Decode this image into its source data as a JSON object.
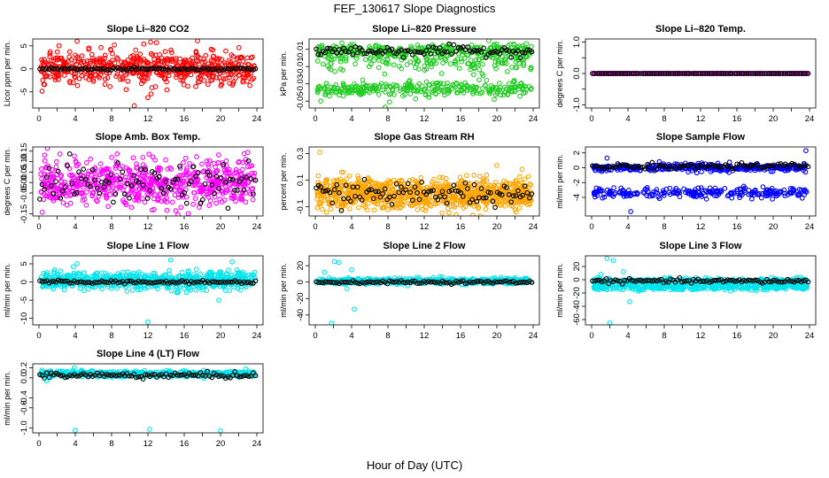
{
  "figure": {
    "title": "FEF_130617  Slope Diagnostics",
    "xlabel": "Hour of Day (UTC)"
  },
  "chart_data": [
    {
      "type": "scatter",
      "title": "Slope Li–820 CO2",
      "ylabel": "Licor ppm per min.",
      "xlim": [
        0,
        24
      ],
      "ylim": [
        -8.5,
        6.5
      ],
      "x_ticks": [
        "0",
        "4",
        "8",
        "12",
        "16",
        "20",
        "24"
      ],
      "x_minor_ticks": [
        "2",
        "6",
        "10",
        "14",
        "18",
        "22"
      ],
      "y_ticks": [
        "-5",
        "0",
        "5"
      ],
      "y_tick_values": [
        -5,
        0,
        5
      ],
      "series": [
        {
          "name": "all slopes",
          "color": "#ff0000",
          "marker": "circle",
          "center": 0,
          "spread": 1.6,
          "outlier_spread": 3.5,
          "count": 600
        },
        {
          "name": "hourly median",
          "color": "#000000",
          "marker": "circle",
          "center": 0,
          "spread": 0.15,
          "count": 95
        }
      ],
      "noted_points": [
        [
          4.2,
          6
        ],
        [
          12.3,
          5.8
        ],
        [
          10.5,
          -8
        ],
        [
          8.3,
          5.2
        ],
        [
          9.6,
          -4.5
        ]
      ]
    },
    {
      "type": "scatter",
      "title": "Slope Li–820 Pressure",
      "ylabel": "kPa per min.",
      "xlim": [
        0,
        24
      ],
      "ylim": [
        -0.058,
        0.022
      ],
      "x_ticks": [
        "0",
        "4",
        "8",
        "12",
        "16",
        "20",
        "24"
      ],
      "x_minor_ticks": [
        "2",
        "6",
        "10",
        "14",
        "18",
        "22"
      ],
      "y_ticks": [
        "-0.05",
        "-0.03",
        "-0.01",
        "0.01"
      ],
      "y_tick_values": [
        -0.05,
        -0.03,
        -0.01,
        0.01
      ],
      "series": [
        {
          "name": "upper band",
          "color": "#22cc22",
          "marker": "circle",
          "center": 0.008,
          "spread": 0.004,
          "count": 300
        },
        {
          "name": "lower band",
          "color": "#22cc22",
          "marker": "circle",
          "center": -0.036,
          "spread": 0.004,
          "count": 300
        },
        {
          "name": "middle band",
          "color": "#22cc22",
          "marker": "circle",
          "center": -0.005,
          "spread": 0.006,
          "count": 150
        },
        {
          "name": "hourly median",
          "color": "#000000",
          "marker": "circle",
          "center": 0.008,
          "spread": 0.003,
          "count": 95
        }
      ],
      "noted_points": [
        [
          7.7,
          -0.057
        ],
        [
          19.1,
          0.02
        ],
        [
          0.6,
          -0.05
        ]
      ]
    },
    {
      "type": "scatter",
      "title": "Slope Li–820 Temp.",
      "ylabel": "degrees C per min.",
      "xlim": [
        0,
        24
      ],
      "ylim": [
        -1.1,
        1.1
      ],
      "x_ticks": [
        "0",
        "4",
        "8",
        "12",
        "16",
        "20",
        "24"
      ],
      "x_minor_ticks": [
        "2",
        "6",
        "10",
        "14",
        "18",
        "22"
      ],
      "y_ticks": [
        "-1.0",
        "0.0",
        "1.0"
      ],
      "y_tick_values": [
        -1.0,
        0.0,
        1.0
      ],
      "y_minor_ticks": [
        "-0.5",
        "0.5"
      ],
      "series": [
        {
          "name": "all slopes",
          "color": "#ff00ff",
          "marker": "circle",
          "center": 0,
          "spread": 0.0,
          "count": 260
        },
        {
          "name": "hourly median",
          "color": "#000000",
          "marker": "circle",
          "center": 0,
          "spread": 0.0,
          "count": 95
        }
      ],
      "noted_points": []
    },
    {
      "type": "scatter",
      "title": "Slope Amb. Box Temp.",
      "ylabel": "degrees C per min.",
      "xlim": [
        0,
        24
      ],
      "ylim": [
        -0.16,
        0.17
      ],
      "x_ticks": [
        "0",
        "4",
        "8",
        "12",
        "16",
        "20",
        "24"
      ],
      "x_minor_ticks": [
        "2",
        "6",
        "10",
        "14",
        "18",
        "22"
      ],
      "y_ticks": [
        "-0.15",
        "-0.05",
        "0.00",
        "0.05",
        "0.10",
        "0.15"
      ],
      "y_tick_values": [
        -0.15,
        -0.05,
        0.0,
        0.05,
        0.1,
        0.15
      ],
      "series": [
        {
          "name": "all slopes",
          "color": "#ff00ff",
          "marker": "circle",
          "center": 0,
          "spread": 0.055,
          "count": 650
        },
        {
          "name": "hourly median",
          "color": "#000000",
          "marker": "circle",
          "center": 0,
          "spread": 0.05,
          "count": 95
        }
      ],
      "noted_points": []
    },
    {
      "type": "scatter",
      "title": "Slope Gas Stream RH",
      "ylabel": "percent per min.",
      "xlim": [
        0,
        24
      ],
      "ylim": [
        -0.17,
        0.35
      ],
      "x_ticks": [
        "0",
        "4",
        "8",
        "12",
        "16",
        "20",
        "24"
      ],
      "x_minor_ticks": [
        "2",
        "6",
        "10",
        "14",
        "18",
        "22"
      ],
      "y_ticks": [
        "-0.1",
        "0.1",
        "0.3"
      ],
      "y_tick_values": [
        -0.1,
        0.1,
        0.3
      ],
      "series": [
        {
          "name": "all slopes",
          "color": "#ffa500",
          "marker": "circle",
          "center": 0,
          "spread": 0.055,
          "count": 900
        },
        {
          "name": "hourly median",
          "color": "#000000",
          "marker": "circle",
          "center": 0,
          "spread": 0.045,
          "count": 95
        }
      ],
      "noted_points": [
        [
          0.5,
          0.31
        ],
        [
          15.5,
          -0.16
        ]
      ]
    },
    {
      "type": "scatter",
      "title": "Slope Sample Flow",
      "ylabel": "ml/min per min.",
      "xlim": [
        0,
        24
      ],
      "ylim": [
        -6.5,
        2.8
      ],
      "x_ticks": [
        "0",
        "4",
        "8",
        "12",
        "16",
        "20",
        "24"
      ],
      "x_minor_ticks": [
        "2",
        "6",
        "10",
        "14",
        "18",
        "22"
      ],
      "y_ticks": [
        "-4",
        "-2",
        "0",
        "2"
      ],
      "y_tick_values": [
        -4,
        -2,
        0,
        2
      ],
      "series": [
        {
          "name": "upper band",
          "color": "#0000ff",
          "marker": "circle",
          "center": 0,
          "spread": 0.25,
          "count": 350
        },
        {
          "name": "lower band",
          "color": "#0000ff",
          "marker": "circle",
          "center": -3.4,
          "spread": 0.35,
          "count": 250
        },
        {
          "name": "hourly median",
          "color": "#000000",
          "marker": "circle",
          "center": 0.2,
          "spread": 0.2,
          "count": 95
        }
      ],
      "noted_points": [
        [
          23.6,
          2.3
        ],
        [
          4.3,
          -5.9
        ],
        [
          1.7,
          1.3
        ]
      ]
    },
    {
      "type": "scatter",
      "title": "Slope Line 1 Flow",
      "ylabel": "ml/min per min.",
      "xlim": [
        0,
        24
      ],
      "ylim": [
        -11.8,
        7.2
      ],
      "x_ticks": [
        "0",
        "4",
        "8",
        "12",
        "16",
        "20",
        "24"
      ],
      "x_minor_ticks": [
        "2",
        "6",
        "10",
        "14",
        "18",
        "22"
      ],
      "y_ticks": [
        "-10",
        "-5",
        "0",
        "5"
      ],
      "y_tick_values": [
        -10,
        -5,
        0,
        5
      ],
      "series": [
        {
          "name": "all slopes",
          "color": "#00e5ee",
          "marker": "circle",
          "center": 0.4,
          "spread": 1.2,
          "count": 650
        },
        {
          "name": "hourly median",
          "color": "#000000",
          "marker": "circle",
          "center": 0,
          "spread": 0.2,
          "count": 95
        }
      ],
      "noted_points": [
        [
          12,
          -11
        ],
        [
          14.5,
          6
        ],
        [
          19.8,
          -5
        ],
        [
          4.2,
          5
        ],
        [
          3.8,
          4.2
        ]
      ]
    },
    {
      "type": "scatter",
      "title": "Slope Line 2 Flow",
      "ylabel": "ml/min per min.",
      "xlim": [
        0,
        24
      ],
      "ylim": [
        -52,
        32
      ],
      "x_ticks": [
        "0",
        "4",
        "8",
        "12",
        "16",
        "20",
        "24"
      ],
      "x_minor_ticks": [
        "2",
        "6",
        "10",
        "14",
        "18",
        "22"
      ],
      "y_ticks": [
        "-40",
        "-20",
        "0",
        "20"
      ],
      "y_tick_values": [
        -40,
        -20,
        0,
        20
      ],
      "series": [
        {
          "name": "all slopes",
          "color": "#00e5ee",
          "marker": "circle",
          "center": 1,
          "spread": 1.8,
          "count": 550
        },
        {
          "name": "hourly median",
          "color": "#000000",
          "marker": "circle",
          "center": 0,
          "spread": 0.8,
          "count": 95
        }
      ],
      "noted_points": [
        [
          1.8,
          -50
        ],
        [
          2.1,
          25
        ],
        [
          2.6,
          24
        ],
        [
          4.3,
          -33
        ],
        [
          3.5,
          -8
        ],
        [
          4,
          15
        ],
        [
          1,
          12
        ]
      ]
    },
    {
      "type": "scatter",
      "title": "Slope Line 3 Flow",
      "ylabel": "ml/min per min.",
      "xlim": [
        0,
        24
      ],
      "ylim": [
        -68,
        36
      ],
      "x_ticks": [
        "0",
        "4",
        "8",
        "12",
        "16",
        "20",
        "24"
      ],
      "x_minor_ticks": [
        "2",
        "6",
        "10",
        "14",
        "18",
        "22"
      ],
      "y_ticks": [
        "-60",
        "-40",
        "-20",
        "0",
        "20"
      ],
      "y_tick_values": [
        -60,
        -40,
        -20,
        0,
        20
      ],
      "series": [
        {
          "name": "upper band",
          "color": "#00e5ee",
          "marker": "circle",
          "center": -2,
          "spread": 2.2,
          "count": 350
        },
        {
          "name": "lower band",
          "color": "#00e5ee",
          "marker": "circle",
          "center": -11,
          "spread": 2.2,
          "count": 350
        },
        {
          "name": "hourly median",
          "color": "#000000",
          "marker": "circle",
          "center": -2,
          "spread": 1.5,
          "count": 95
        }
      ],
      "noted_points": [
        [
          2,
          -65
        ],
        [
          1.7,
          32
        ],
        [
          2.4,
          29
        ],
        [
          4.2,
          -33
        ],
        [
          3.5,
          12
        ],
        [
          1,
          8
        ]
      ]
    },
    {
      "type": "scatter",
      "title": "Slope Line 4 (LT) Flow",
      "ylabel": "ml/min per min.",
      "xlim": [
        0,
        24
      ],
      "ylim": [
        -1.1,
        0.28
      ],
      "x_ticks": [
        "0",
        "4",
        "8",
        "12",
        "16",
        "20",
        "24"
      ],
      "x_minor_ticks": [
        "2",
        "6",
        "10",
        "14",
        "18",
        "22"
      ],
      "y_ticks": [
        "-1.0",
        "-0.6",
        "-0.4",
        "0.0",
        "0.2"
      ],
      "y_tick_values": [
        -1.0,
        -0.6,
        -0.4,
        0.0,
        0.2
      ],
      "series": [
        {
          "name": "all slopes",
          "color": "#00e5ee",
          "marker": "circle",
          "center": 0.08,
          "spread": 0.03,
          "count": 500
        },
        {
          "name": "hourly median",
          "color": "#000000",
          "marker": "circle",
          "center": 0.05,
          "spread": 0.03,
          "count": 95
        }
      ],
      "noted_points": [
        [
          4,
          -1.05
        ],
        [
          12.2,
          -1.03
        ],
        [
          20,
          -1.06
        ],
        [
          3.9,
          0.2
        ],
        [
          0.8,
          -0.06
        ]
      ]
    }
  ]
}
